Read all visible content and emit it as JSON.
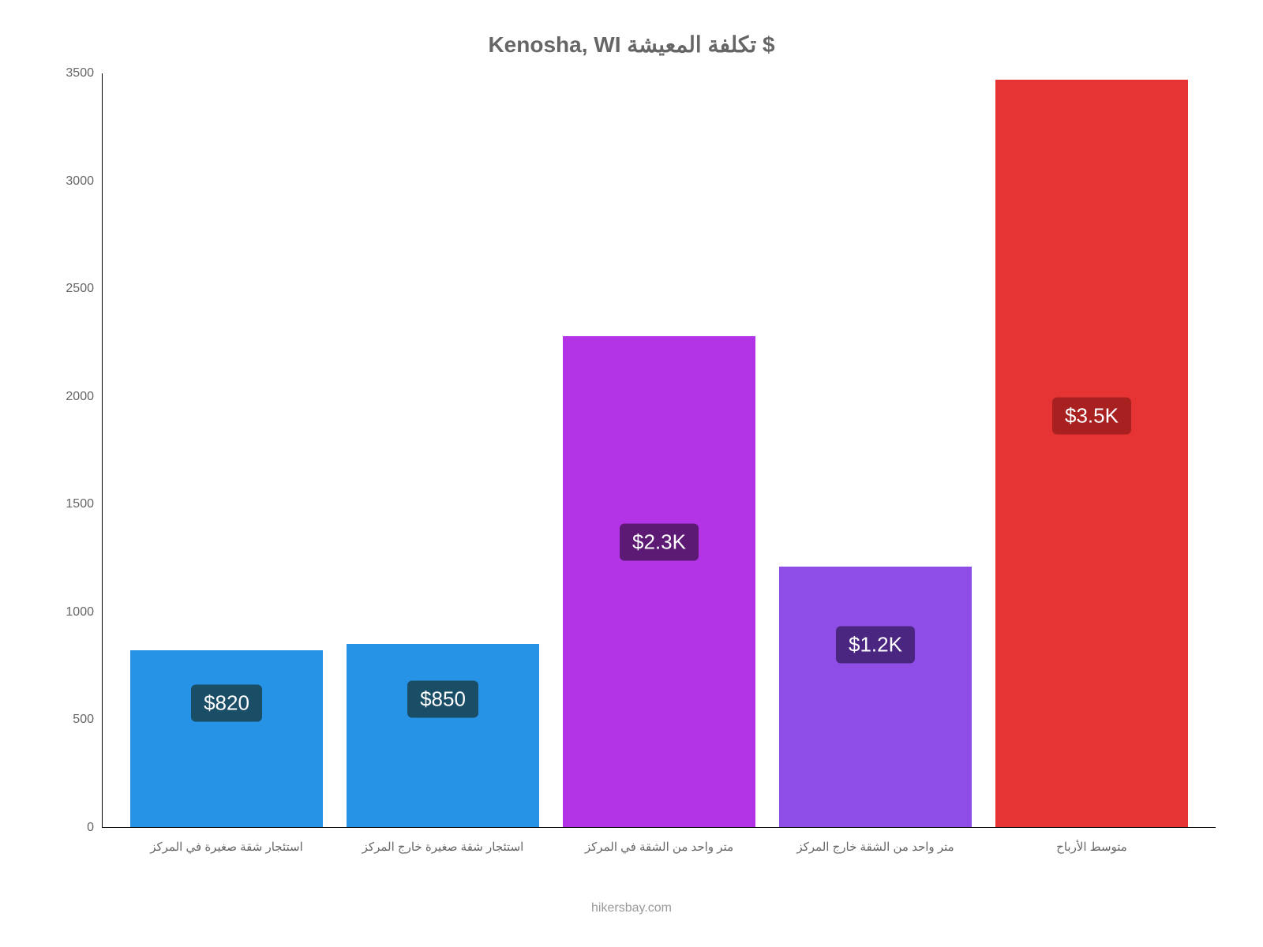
{
  "chart": {
    "title": "Kenosha, WI تكلفة المعيشة $",
    "title_color": "#666666",
    "title_fontsize": 28,
    "type": "bar",
    "background_color": "#ffffff",
    "ylim": [
      0,
      3500
    ],
    "ytick_step": 500,
    "y_ticks": [
      {
        "value": 0,
        "label": "0"
      },
      {
        "value": 500,
        "label": "500"
      },
      {
        "value": 1000,
        "label": "1000"
      },
      {
        "value": 1500,
        "label": "1500"
      },
      {
        "value": 2000,
        "label": "2000"
      },
      {
        "value": 2500,
        "label": "2500"
      },
      {
        "value": 3000,
        "label": "3000"
      },
      {
        "value": 3500,
        "label": "3500"
      }
    ],
    "axis_color": "#000000",
    "tick_label_color": "#666666",
    "tick_fontsize": 16,
    "x_label_fontsize": 15,
    "bar_label_fontsize": 26,
    "bars": [
      {
        "category": "استئجار شقة صغيرة في المركز",
        "value": 820,
        "display_label": "$820",
        "bar_color": "#2693e6",
        "label_bg_color": "#1a4d66",
        "label_text_color": "#ffffff"
      },
      {
        "category": "استئجار شقة صغيرة خارج المركز",
        "value": 850,
        "display_label": "$850",
        "bar_color": "#2693e6",
        "label_bg_color": "#1a4d66",
        "label_text_color": "#ffffff"
      },
      {
        "category": "متر واحد من الشقة في المركز",
        "value": 2280,
        "display_label": "$2.3K",
        "bar_color": "#b333e6",
        "label_bg_color": "#5c1a75",
        "label_text_color": "#ffffff"
      },
      {
        "category": "متر واحد من الشقة خارج المركز",
        "value": 1210,
        "display_label": "$1.2K",
        "bar_color": "#8d4de6",
        "label_bg_color": "#4a2680",
        "label_text_color": "#ffffff"
      },
      {
        "category": "متوسط الأرباح",
        "value": 3470,
        "display_label": "$3.5K",
        "bar_color": "#e63333",
        "label_bg_color": "#a82020",
        "label_text_color": "#ffffff"
      }
    ],
    "footer_text": "hikersbay.com",
    "footer_color": "#999999"
  }
}
